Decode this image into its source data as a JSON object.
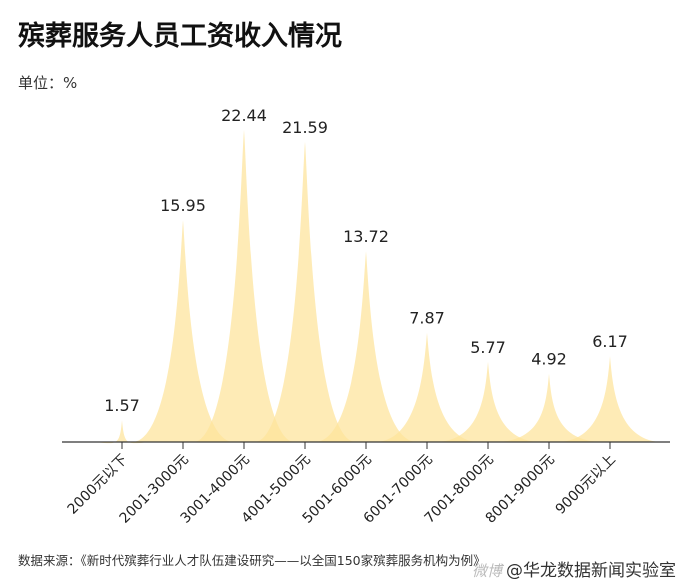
{
  "title": "殡葬服务人员工资收入情况",
  "unit_label": "单位：%",
  "source_text": "数据来源：《新时代殡葬行业人才队伍建设研究——以全国150家殡葬服务机构为例》",
  "watermark": "微博",
  "brand": "@华龙数据新闻实验室",
  "colors": {
    "fill": "#fde39a",
    "axis": "#333333",
    "text": "#222222"
  },
  "chart_data": {
    "type": "area",
    "title": "殡葬服务人员工资收入情况",
    "ylabel": "单位：%",
    "categories": [
      "2000元以下",
      "2001-3000元",
      "3001-4000元",
      "4001-5000元",
      "5001-6000元",
      "6001-7000元",
      "7001-8000元",
      "8001-9000元",
      "9000元以上"
    ],
    "values": [
      1.57,
      15.95,
      22.44,
      21.59,
      13.72,
      7.87,
      5.77,
      4.92,
      6.17
    ],
    "ylim": [
      0,
      22.44
    ],
    "grid": false,
    "legend": "none"
  }
}
